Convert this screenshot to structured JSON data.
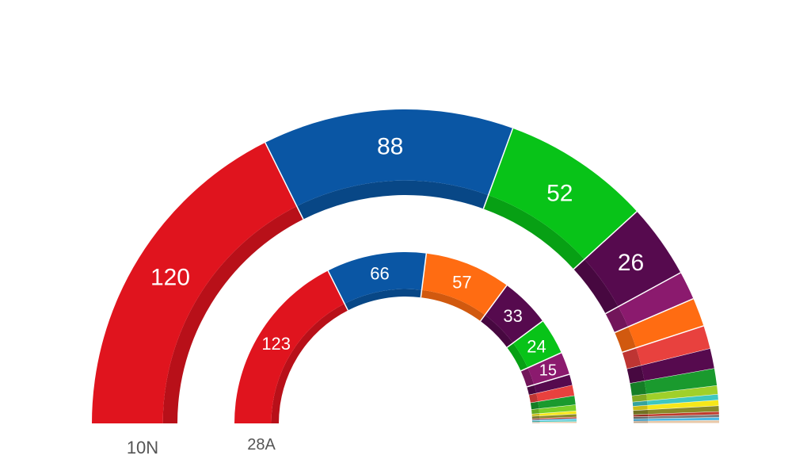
{
  "chart_data": [
    {
      "type": "pie",
      "ring_label": "10N",
      "slices": [
        {
          "value": 120,
          "color": "#e0141e",
          "label": "120"
        },
        {
          "value": 88,
          "color": "#0a56a4",
          "label": "88"
        },
        {
          "value": 52,
          "color": "#08c318",
          "label": "52"
        },
        {
          "value": 26,
          "color": "#560a4e",
          "label": "26"
        },
        {
          "value": 10,
          "color": "#8b1a6e",
          "label": ""
        },
        {
          "value": 10,
          "color": "#ff6c12",
          "label": ""
        },
        {
          "value": 8,
          "color": "#e8413e",
          "label": ""
        },
        {
          "value": 7,
          "color": "#560a4e",
          "label": ""
        },
        {
          "value": 6,
          "color": "#1a9a2e",
          "label": ""
        },
        {
          "value": 3,
          "color": "#a0d02a",
          "label": ""
        },
        {
          "value": 2,
          "color": "#3fc7c0",
          "label": ""
        },
        {
          "value": 2,
          "color": "#f6e71a",
          "label": ""
        },
        {
          "value": 2,
          "color": "#8a8a2a",
          "label": ""
        },
        {
          "value": 1,
          "color": "#c0392b",
          "label": ""
        },
        {
          "value": 1,
          "color": "#7a7a7a",
          "label": ""
        },
        {
          "value": 1,
          "color": "#48b8e8",
          "label": ""
        },
        {
          "value": 1,
          "color": "#e8c8a8",
          "label": ""
        }
      ]
    },
    {
      "type": "pie",
      "ring_label": "28A",
      "slices": [
        {
          "value": 123,
          "color": "#e0141e",
          "label": "123"
        },
        {
          "value": 66,
          "color": "#0a56a4",
          "label": "66"
        },
        {
          "value": 57,
          "color": "#ff6c12",
          "label": "57"
        },
        {
          "value": 33,
          "color": "#560a4e",
          "label": "33"
        },
        {
          "value": 24,
          "color": "#08c318",
          "label": "24"
        },
        {
          "value": 15,
          "color": "#8b1a6e",
          "label": "15"
        },
        {
          "value": 7,
          "color": "#560a4e",
          "label": ""
        },
        {
          "value": 7,
          "color": "#e8413e",
          "label": ""
        },
        {
          "value": 6,
          "color": "#1a9a2e",
          "label": ""
        },
        {
          "value": 4,
          "color": "#7ad02a",
          "label": ""
        },
        {
          "value": 2,
          "color": "#f6e71a",
          "label": ""
        },
        {
          "value": 2,
          "color": "#8a8a2a",
          "label": ""
        },
        {
          "value": 1,
          "color": "#c0392b",
          "label": ""
        },
        {
          "value": 1,
          "color": "#48b8e8",
          "label": ""
        },
        {
          "value": 1,
          "color": "#3fc7c0",
          "label": ""
        },
        {
          "value": 1,
          "color": "#e8c8a8",
          "label": ""
        }
      ]
    }
  ]
}
